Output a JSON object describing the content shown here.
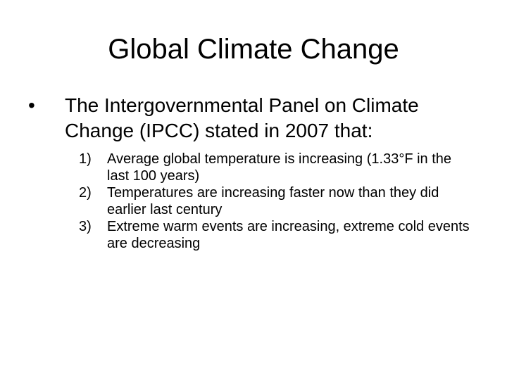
{
  "slide": {
    "title": "Global Climate Change",
    "bullet": {
      "marker": "•",
      "text": "The Intergovernmental Panel on Climate Change (IPCC) stated in 2007 that:"
    },
    "points": [
      {
        "number": "1)",
        "text": "Average global temperature is increasing (1.33°F in the last 100 years)"
      },
      {
        "number": "2)",
        "text": "Temperatures are increasing faster now than they did earlier last century"
      },
      {
        "number": "3)",
        "text": "Extreme warm events are increasing, extreme cold events are decreasing"
      }
    ]
  }
}
